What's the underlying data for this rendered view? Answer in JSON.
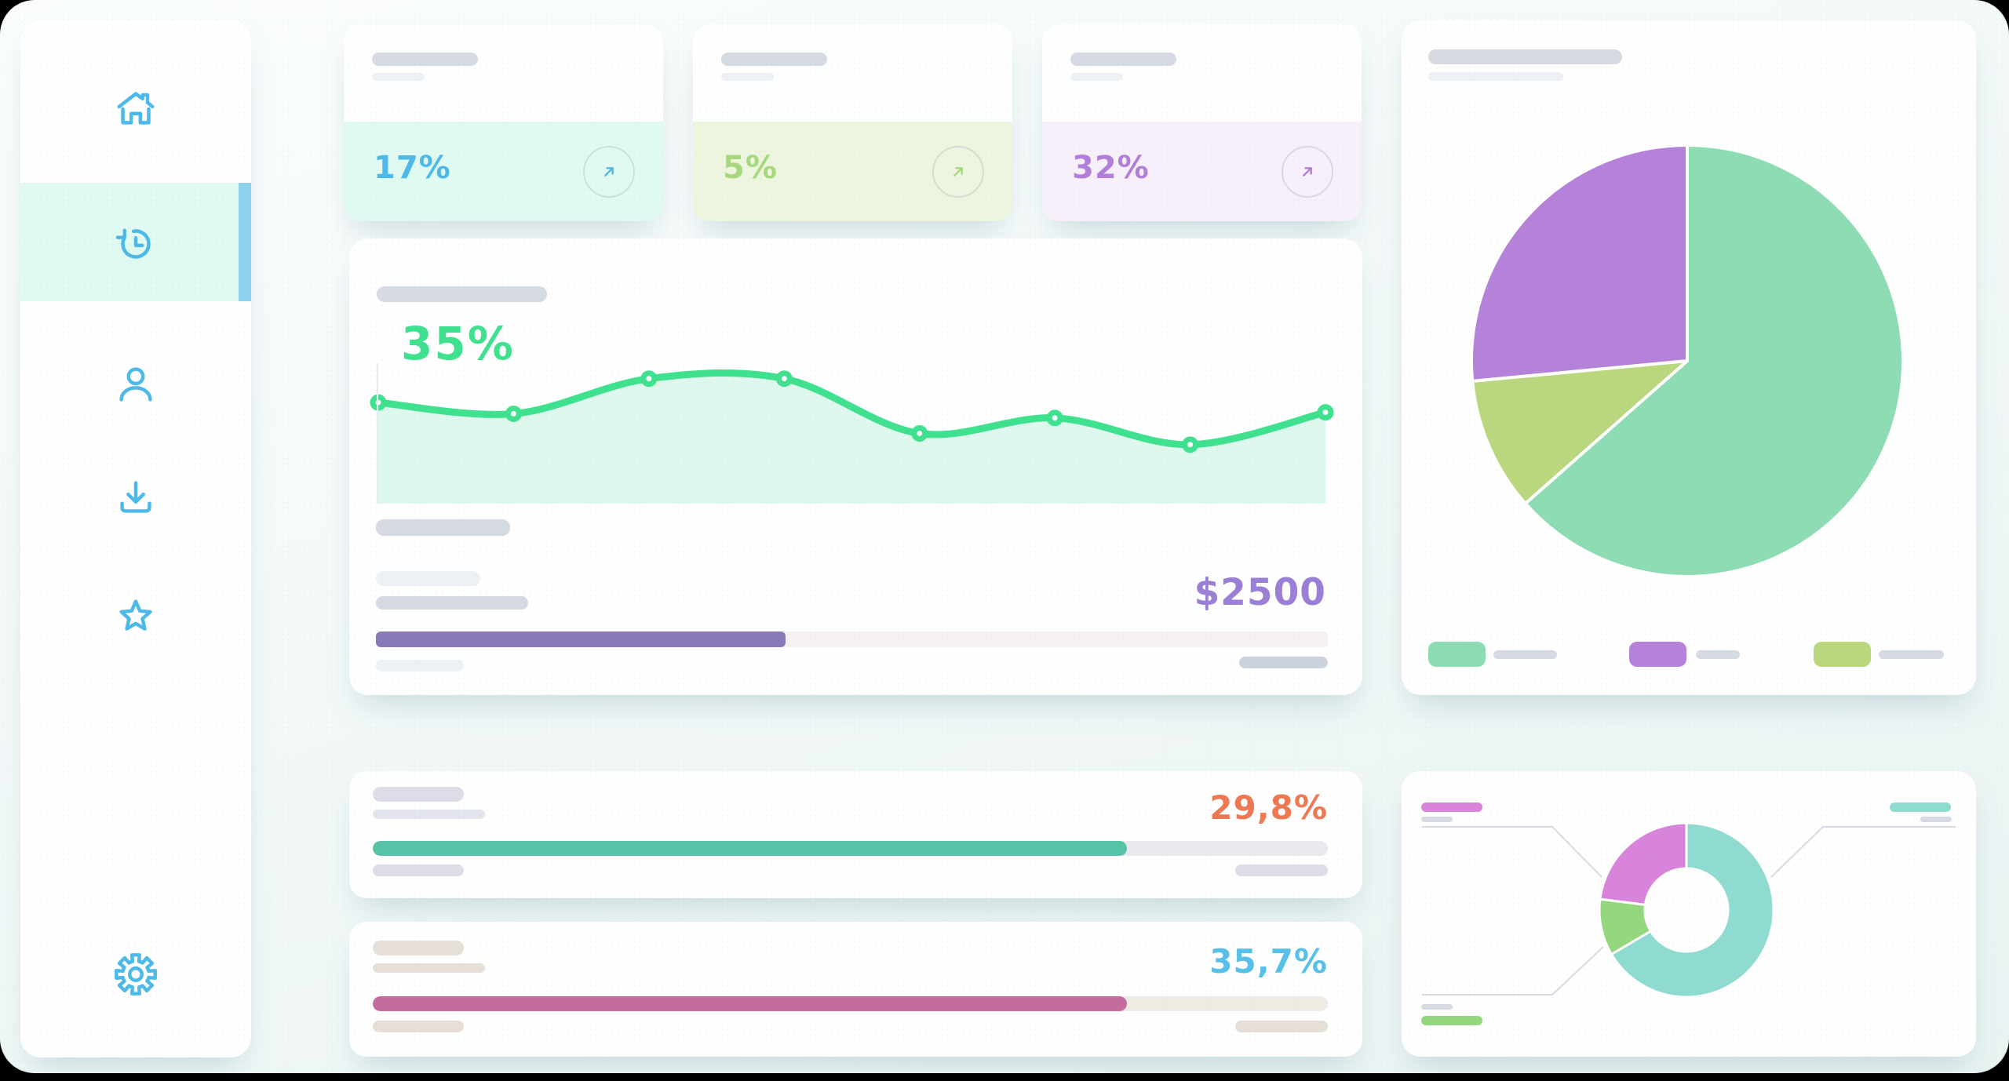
{
  "theme": {
    "icon_blue": "#4cb9e9",
    "sidebar_active_bg": "#e0f9f1",
    "sidebar_accent": "#8fd2ee",
    "skeleton_dark": "#d5dae3",
    "skeleton_light": "#edf0f5",
    "skeleton_cool": "#dcdde7",
    "skeleton_warm": "#e6dfd8",
    "chart_green": "#3fe18f",
    "chart_green_fill": "#def8ee",
    "money_purple": "#9b7fd6",
    "bar_purple": "#8a79b8",
    "bar_purple_track": "#f6f0f2",
    "kpi_orange": "#ee7851",
    "bar_teal": "#56c3a7",
    "bar_teal_track": "#e9e9ee",
    "kpi_blue": "#56c0e8",
    "bar_pink": "#c66b9d",
    "bar_pink_track": "#efeae4",
    "pie_green": "#8edcb3",
    "pie_purple": "#b681d9",
    "pie_lime": "#bad77e",
    "donut_teal": "#8fdbd2",
    "donut_magenta": "#d884da",
    "donut_green": "#95d77e",
    "leader_line": "#d6dbe4"
  },
  "sidebar": {
    "items": [
      {
        "id": "home",
        "icon": "home-icon",
        "active": false
      },
      {
        "id": "history",
        "icon": "history-icon",
        "active": true
      },
      {
        "id": "profile",
        "icon": "person-icon",
        "active": false
      },
      {
        "id": "downloads",
        "icon": "download-icon",
        "active": false
      },
      {
        "id": "favorites",
        "icon": "star-icon",
        "active": false
      },
      {
        "id": "settings",
        "icon": "gear-icon",
        "active": false
      }
    ]
  },
  "stats": [
    {
      "value": "17%",
      "value_color": "#4cb9e9",
      "bg": "#e1faf1"
    },
    {
      "value": "5%",
      "value_color": "#a8d87d",
      "bg": "#eef5de"
    },
    {
      "value": "32%",
      "value_color": "#b27fd8",
      "bg": "#f7effa"
    }
  ],
  "main_card": {
    "value_label": "35%",
    "amount": "$2500",
    "progress_pct": 43
  },
  "kpi_cards": [
    {
      "value": "29,8%",
      "value_color": "#ee7851",
      "bar_color": "#56c3a7",
      "track": "#e9e9ee",
      "skeleton": "#dcdde7",
      "progress_pct": 79
    },
    {
      "value": "35,7%",
      "value_color": "#56c0e8",
      "bar_color": "#c66b9d",
      "track": "#efeae4",
      "skeleton": "#e6dfd8",
      "progress_pct": 79
    }
  ],
  "chart_data": [
    {
      "type": "area",
      "title": "",
      "x": [
        1,
        2,
        3,
        4,
        5,
        6,
        7,
        8
      ],
      "values": [
        72,
        64,
        89,
        89,
        50,
        61,
        42,
        65
      ],
      "ylim": [
        0,
        100
      ],
      "value_label": "35%",
      "line_color": "#3fe18f",
      "fill_color": "#def8ee",
      "markers": true,
      "grid": false
    },
    {
      "type": "pie",
      "slices": [
        {
          "color_key": "pie_green",
          "pct": 63.5
        },
        {
          "color_key": "pie_lime",
          "pct": 10.0
        },
        {
          "color_key": "pie_purple",
          "pct": 26.5
        }
      ],
      "start_angle_deg": 0,
      "legend_position": "bottom",
      "legend_order": [
        "pie_green",
        "pie_purple",
        "pie_lime"
      ]
    },
    {
      "type": "donut",
      "slices": [
        {
          "color_key": "donut_teal",
          "pct": 66.5
        },
        {
          "color_key": "donut_green",
          "pct": 10.5
        },
        {
          "color_key": "donut_magenta",
          "pct": 23.0
        }
      ],
      "start_angle_deg": 0,
      "inner_radius_ratio": 0.48,
      "legend_position": "callouts"
    }
  ]
}
